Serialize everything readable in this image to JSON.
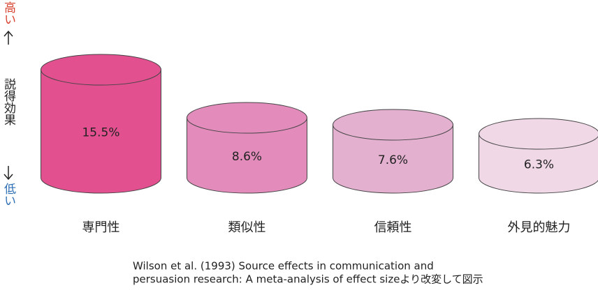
{
  "chart_data": {
    "type": "cylinder",
    "y_label_high": "高い",
    "y_label": "説得効果",
    "y_label_low": "低い",
    "categories": [
      "専門性",
      "類似性",
      "信頼性",
      "外見的魅力"
    ],
    "values": [
      15.5,
      8.6,
      7.6,
      6.3
    ],
    "value_labels": [
      "15.5%",
      "8.6%",
      "7.6%",
      "6.3%"
    ],
    "colors": [
      "#e2508f",
      "#e38cbc",
      "#e3b1cf",
      "#f0d8e7"
    ],
    "source": [
      "Wilson et al. (1993) Source effects in communication and",
      "persuasion research: A meta-analysis of effect sizeより改変して図示"
    ]
  }
}
